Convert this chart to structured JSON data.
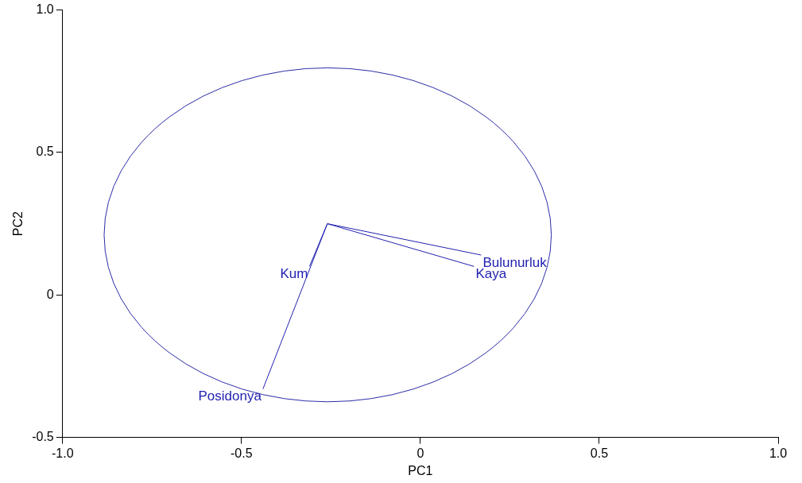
{
  "chart_data": {
    "type": "line",
    "xlabel": "PC1",
    "ylabel": "PC2",
    "xlim": [
      -1,
      1
    ],
    "ylim": [
      -0.5,
      1
    ],
    "xticks": [
      {
        "value": -1,
        "label": "-1.0"
      },
      {
        "value": -0.5,
        "label": "-0.5"
      },
      0,
      {
        "value": 0.5,
        "label": "0.5"
      },
      {
        "value": 1,
        "label": "1.0"
      }
    ],
    "yticks": [
      {
        "value": -0.5,
        "label": "-0.5"
      },
      0,
      {
        "value": 0.5,
        "label": "0.5"
      },
      {
        "value": 1,
        "label": "1.0"
      }
    ],
    "grid": false,
    "legend": false,
    "marker": "none",
    "line_style": "solid",
    "series": [
      {
        "name": "Bulunurluk",
        "color": "#2222b0",
        "x": [
          -0.26,
          0.17
        ],
        "values": [
          0.25,
          0.14
        ]
      },
      {
        "name": "Kaya",
        "color": "#2222b0",
        "x": [
          -0.26,
          0.15
        ],
        "values": [
          0.25,
          0.1
        ]
      },
      {
        "name": "Kum",
        "color": "#2222b0",
        "x": [
          -0.31,
          -0.26
        ],
        "values": [
          0.1,
          0.25
        ]
      },
      {
        "name": "Posidonya",
        "color": "#2222b0",
        "x": [
          -0.44,
          -0.26
        ],
        "values": [
          -0.33,
          0.25
        ]
      }
    ]
  }
}
